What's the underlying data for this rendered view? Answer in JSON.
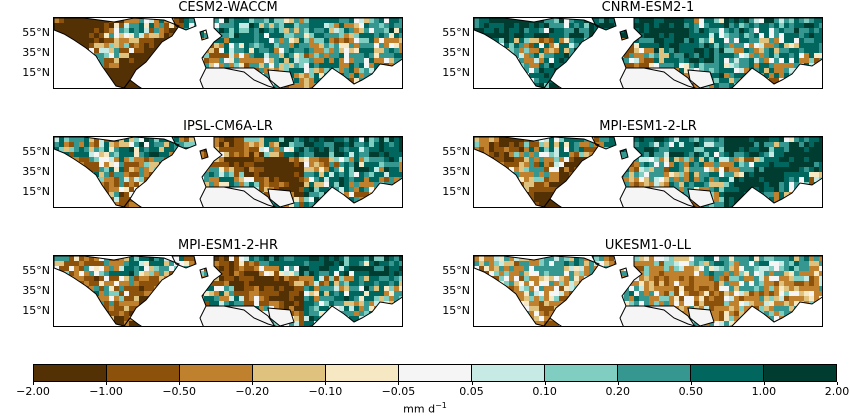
{
  "panels": [
    {
      "title": "CESM2-WACCM",
      "pattern": "dry-west"
    },
    {
      "title": "CNRM-ESM2-1",
      "pattern": "wet-mixed"
    },
    {
      "title": "IPSL-CM6A-LR",
      "pattern": "dry-europe"
    },
    {
      "title": "MPI-ESM1-2-LR",
      "pattern": "wet-asia"
    },
    {
      "title": "MPI-ESM1-2-HR",
      "pattern": "dry-central"
    },
    {
      "title": "UKESM1-0-LL",
      "pattern": "light-mixed"
    }
  ],
  "lat_labels": [
    "55°N",
    "35°N",
    "15°N"
  ],
  "colorbar": {
    "label": "mm d",
    "label_exp": "−1",
    "ticks": [
      "−2.00",
      "−1.00",
      "−0.50",
      "−0.20",
      "−0.10",
      "−0.05",
      "0.05",
      "0.10",
      "0.20",
      "0.50",
      "1.00",
      "2.00"
    ],
    "colors": [
      "#543005",
      "#8c510a",
      "#bf812d",
      "#dfc27d",
      "#f6e8c3",
      "#f5f5f5",
      "#c7eae5",
      "#80cdc1",
      "#35978f",
      "#01665e",
      "#003c30"
    ]
  }
}
